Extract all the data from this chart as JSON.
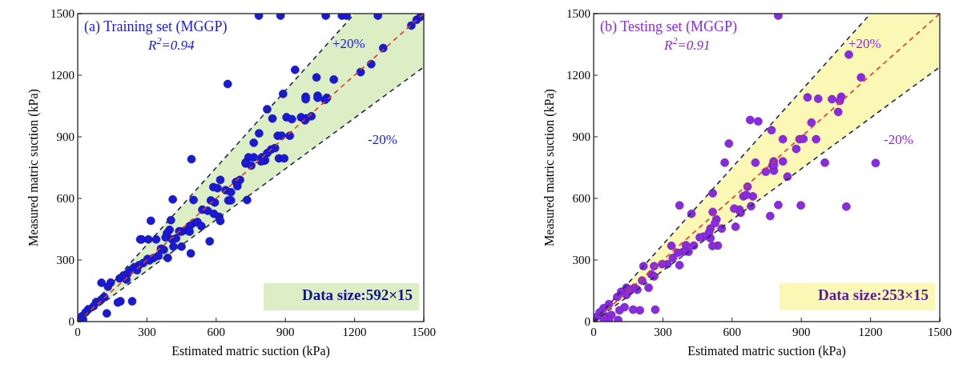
{
  "chart_data": [
    {
      "type": "scatter",
      "title": "(a) Training set (MGGP)",
      "xlabel": "Estimated matric suction (kPa)",
      "ylabel": "Measured matric suction (kPa)",
      "xlim": [
        0,
        1500
      ],
      "ylim": [
        0,
        1500
      ],
      "xticks": [
        0,
        300,
        600,
        900,
        1200,
        1500
      ],
      "yticks": [
        0,
        300,
        600,
        900,
        1200,
        1500
      ],
      "grid": false,
      "marker": "circle",
      "annotations": [
        "R$^{2}$=0.94",
        "+20%",
        "-20%",
        "Data size:592×15"
      ],
      "series": [
        {
          "type": "line",
          "color": "#e03c2c",
          "line_style": "dashed",
          "marker": "none",
          "x": [
            0,
            1200,
            1500
          ],
          "values": [
            0,
            1200,
            1500
          ],
          "lower": [
            0,
            992,
            1240
          ],
          "upper": [
            0,
            1500,
            1500
          ]
        },
        {
          "type": "line",
          "color": "#1e2a5a",
          "line_style": "dashed",
          "marker": "none",
          "x": [
            0,
            1200
          ],
          "values": [
            0,
            1500
          ]
        },
        {
          "type": "line",
          "color": "#1e2a5a",
          "line_style": "dashed",
          "marker": "none",
          "x": [
            0,
            1500
          ],
          "values": [
            0,
            1240
          ]
        },
        {
          "color": "#1a1ad6",
          "x": [
            785,
            879,
            1075,
            1145,
            1165,
            1301,
            1446,
            1469,
            1486,
            1324,
            1272,
            1226,
            650,
            942,
            1035,
            1110,
            890,
            988,
            988,
            1040,
            1040,
            1080,
            1072,
            821,
            844,
            905,
            928,
            968,
            990,
            1013,
            985,
            786,
            763,
            867,
            884,
            919,
            838,
            855,
            821,
            798,
            810,
            740,
            763,
            728,
            872,
            895,
            493,
            618,
            588,
            606,
            686,
            703,
            692,
            641,
            664,
            653,
            664,
            734,
            577,
            594,
            412,
            502,
            540,
            563,
            590,
            613,
            618,
            317,
            404,
            502,
            519,
            536,
            485,
            398,
            467,
            485,
            450,
            387,
            381,
            277,
            271,
            306,
            340,
            440,
            572,
            450,
            490,
            409,
            426,
            415,
            361,
            373,
            390,
            350,
            329,
            311,
            284,
            303,
            266,
            245,
            257,
            228,
            217,
            199,
            182,
            211,
            103,
            143,
            131,
            236,
            185,
            174,
            126,
            115,
            103,
            80,
            69,
            46,
            34,
            17,
            23,
            728,
            752,
            812,
            795
          ],
          "values": [
            1490,
            1490,
            1490,
            1490,
            1490,
            1490,
            1442,
            1470,
            1485,
            1332,
            1254,
            1215,
            1157,
            1226,
            1189,
            1179,
            1109,
            1095,
            1083,
            1100,
            1090,
            1090,
            1080,
            1034,
            989,
            995,
            986,
            995,
            990,
            1000,
            980,
            917,
            871,
            905,
            905,
            905,
            838,
            845,
            820,
            800,
            785,
            800,
            800,
            770,
            795,
            795,
            791,
            690,
            655,
            650,
            680,
            690,
            660,
            640,
            630,
            590,
            590,
            592,
            590,
            580,
            595,
            592,
            545,
            540,
            525,
            510,
            490,
            491,
            494,
            480,
            485,
            465,
            465,
            447,
            445,
            438,
            438,
            430,
            410,
            400,
            400,
            400,
            400,
            440,
            391,
            365,
            332,
            400,
            405,
            365,
            355,
            350,
            310,
            320,
            310,
            298,
            285,
            305,
            275,
            265,
            250,
            250,
            235,
            225,
            210,
            205,
            189,
            190,
            170,
            99,
            99,
            93,
            40,
            120,
            108,
            95,
            75,
            60,
            45,
            25,
            10,
            775,
            760,
            785,
            780
          ]
        }
      ]
    },
    {
      "type": "scatter",
      "title": "(b) Testing set (MGGP)",
      "xlabel": "Estimated matric suction (kPa)",
      "ylabel": "Measured matric suction (kPa)",
      "xlim": [
        0,
        1500
      ],
      "ylim": [
        0,
        1500
      ],
      "xticks": [
        0,
        300,
        600,
        900,
        1200,
        1500
      ],
      "yticks": [
        0,
        300,
        600,
        900,
        1200,
        1500
      ],
      "grid": false,
      "marker": "circle",
      "annotations": [
        "R$^{2}$=0.91",
        "+20%",
        "-20%",
        "Data size:253×15"
      ],
      "series": [
        {
          "type": "line",
          "color": "#e03c2c",
          "line_style": "dashed",
          "marker": "none",
          "x": [
            0,
            1200,
            1500
          ],
          "values": [
            0,
            1200,
            1500
          ],
          "lower": [
            0,
            992,
            1240
          ],
          "upper": [
            0,
            1500,
            1500
          ]
        },
        {
          "type": "line",
          "color": "#1e2a5a",
          "line_style": "dashed",
          "marker": "none",
          "x": [
            0,
            1200
          ],
          "values": [
            0,
            1500
          ]
        },
        {
          "type": "line",
          "color": "#1e2a5a",
          "line_style": "dashed",
          "marker": "none",
          "x": [
            0,
            1500
          ],
          "values": [
            0,
            1240
          ]
        },
        {
          "color": "#8a2be2",
          "x": [
            800,
            1106,
            1159,
            927,
            973,
            1033,
            1073,
            1067,
            1060,
            678,
            713,
            944,
            771,
            586,
            820,
            892,
            909,
            964,
            878,
            568,
            701,
            780,
            820,
            775,
            1002,
            1222,
            746,
            781,
            781,
            840,
            667,
            516,
            649,
            690,
            661,
            372,
            800,
            898,
            1095,
            682,
            632,
            609,
            637,
            424,
            516,
            765,
            532,
            526,
            555,
            615,
            506,
            500,
            477,
            460,
            506,
            538,
            515,
            337,
            400,
            434,
            411,
            388,
            365,
            343,
            320,
            216,
            262,
            297,
            372,
            250,
            262,
            238,
            210,
            177,
            142,
            160,
            189,
            119,
            142,
            102,
            200,
            171,
            267,
            66,
            43,
            26,
            8,
            54,
            77,
            106,
            66,
            43,
            134,
            112
          ],
          "values": [
            1490,
            1300,
            1189,
            1092,
            1085,
            1083,
            1095,
            1075,
            1021,
            982,
            975,
            969,
            932,
            867,
            888,
            888,
            890,
            888,
            841,
            774,
            774,
            780,
            780,
            760,
            774,
            772,
            730,
            735,
            761,
            706,
            657,
            625,
            610,
            610,
            617,
            566,
            568,
            566,
            560,
            562,
            545,
            550,
            530,
            525,
            534,
            514,
            498,
            479,
            453,
            462,
            453,
            433,
            414,
            410,
            406,
            370,
            368,
            369,
            372,
            370,
            340,
            340,
            335,
            310,
            280,
            270,
            270,
            280,
            275,
            230,
            220,
            165,
            200,
            165,
            165,
            155,
            155,
            145,
            130,
            120,
            55,
            58,
            58,
            85,
            65,
            45,
            20,
            25,
            32,
            8,
            8,
            15,
            70,
            55
          ]
        }
      ]
    }
  ]
}
